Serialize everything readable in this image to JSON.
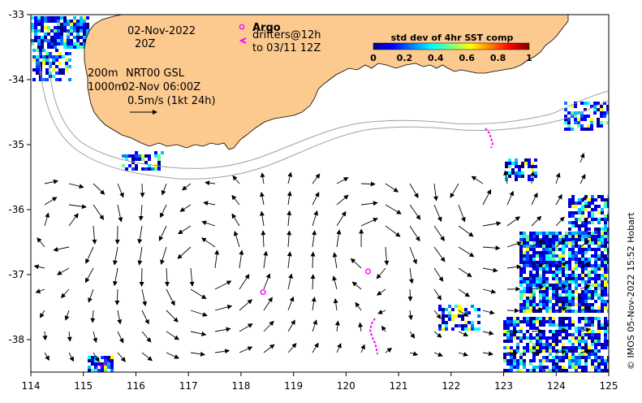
{
  "map": {
    "date_line": "02-Nov-2022",
    "time_line": "20Z",
    "contour_label_200": "200m",
    "contour_label_1000": "1000m",
    "product_label": "NRT00 GSL",
    "product_time": "02-Nov 06:00Z",
    "vector_scale_label": "0.5m/s (1kt 24h)",
    "argo_label": "Argo",
    "drifters_label": "drifters@12h",
    "drifters_to": "to 03/11 12Z",
    "credit": "© IMOS 05-Nov-2022 15:52 Hobart",
    "colors": {
      "land": "#fcc98f",
      "argo": "#ff00ff",
      "drifter": "#ff00ff",
      "contour": "#a0a0a0"
    }
  },
  "colorbar": {
    "title": "std dev of 4hr SST comp",
    "ticks": [
      "0",
      "0.2",
      "0.4",
      "0.6",
      "0.8",
      "1"
    ],
    "min": 0,
    "max": 1
  },
  "axes": {
    "x_ticks": [
      "114",
      "115",
      "116",
      "117",
      "118",
      "119",
      "120",
      "121",
      "122",
      "123",
      "124",
      "125"
    ],
    "y_ticks": [
      "-33",
      "-34",
      "-35",
      "-36",
      "-37",
      "-38"
    ],
    "lon_range": [
      114,
      125
    ],
    "lat_range": [
      -38.5,
      -33
    ]
  },
  "argo_floats": [
    {
      "lon": 118.42,
      "lat": -37.27
    },
    {
      "lon": 120.42,
      "lat": -36.95
    }
  ]
}
